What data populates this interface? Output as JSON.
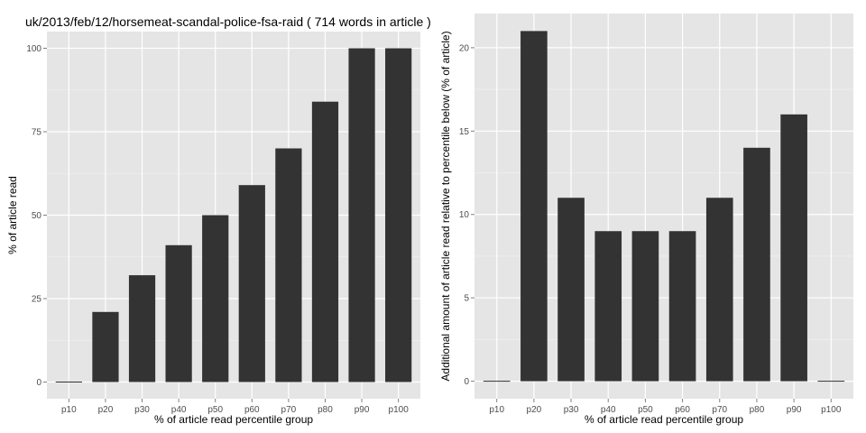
{
  "chart_data": [
    {
      "type": "bar",
      "title": "uk/2013/feb/12/horsemeat-scandal-police-fsa-raid ( 714 words in article )",
      "xlabel": "% of article read percentile group",
      "ylabel": "% of article read",
      "categories": [
        "p10",
        "p20",
        "p30",
        "p40",
        "p50",
        "p60",
        "p70",
        "p80",
        "p90",
        "p100"
      ],
      "values": [
        0,
        21,
        32,
        41,
        50,
        59,
        70,
        84,
        100,
        100
      ],
      "yticks": [
        0,
        25,
        50,
        75,
        100
      ],
      "ylim": [
        -5,
        105
      ],
      "grid": true,
      "bar_color": "#333333",
      "panel_color": "#e5e5e5"
    },
    {
      "type": "bar",
      "title": "",
      "xlabel": "% of article read percentile group",
      "ylabel": "Additional amount of article read relative to percentile below (% of article)",
      "categories": [
        "p10",
        "p20",
        "p30",
        "p40",
        "p50",
        "p60",
        "p70",
        "p80",
        "p90",
        "p100"
      ],
      "values": [
        0,
        21,
        11,
        9,
        9,
        9,
        11,
        14,
        16,
        0
      ],
      "yticks": [
        0,
        5,
        10,
        15,
        20
      ],
      "ylim": [
        -1.05,
        22.05
      ],
      "grid": true,
      "bar_color": "#333333",
      "panel_color": "#e5e5e5"
    }
  ]
}
